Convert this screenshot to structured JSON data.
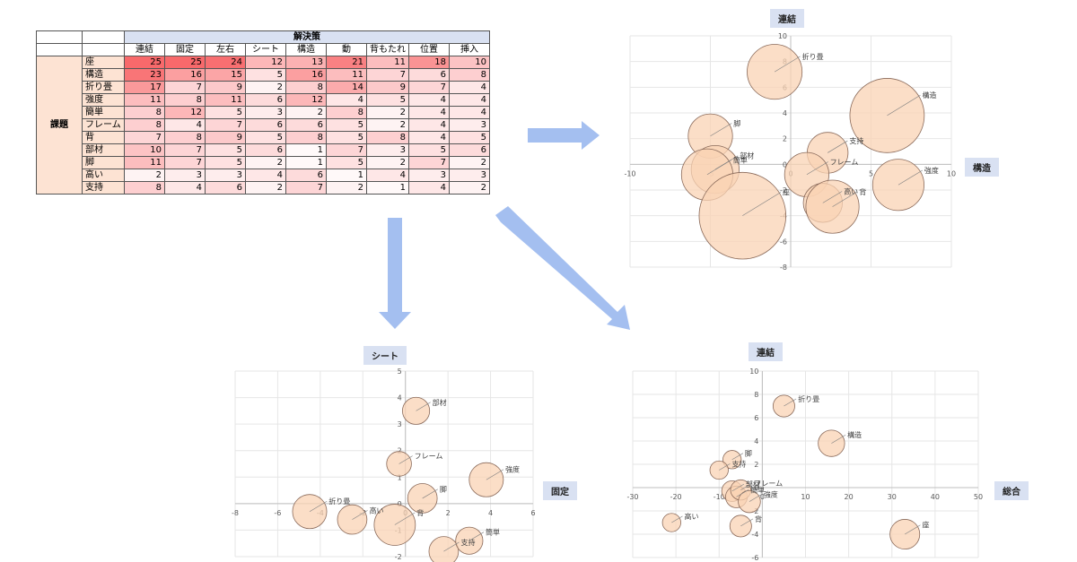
{
  "table": {
    "group_header": "解決策",
    "row_group_label": "課題",
    "columns": [
      "連結",
      "固定",
      "左右",
      "シート",
      "構造",
      "動",
      "背もたれ",
      "位置",
      "挿入"
    ],
    "rows": [
      {
        "label": "座",
        "values": [
          25,
          25,
          24,
          12,
          13,
          21,
          11,
          18,
          10
        ]
      },
      {
        "label": "構造",
        "values": [
          23,
          16,
          15,
          5,
          16,
          11,
          7,
          6,
          8
        ]
      },
      {
        "label": "折り畳",
        "values": [
          17,
          7,
          9,
          2,
          8,
          14,
          9,
          7,
          4
        ]
      },
      {
        "label": "強度",
        "values": [
          11,
          8,
          11,
          6,
          12,
          4,
          5,
          4,
          4
        ]
      },
      {
        "label": "簡単",
        "values": [
          8,
          12,
          5,
          3,
          2,
          8,
          2,
          4,
          4
        ]
      },
      {
        "label": "フレーム",
        "values": [
          8,
          4,
          7,
          6,
          6,
          5,
          2,
          4,
          3
        ]
      },
      {
        "label": "背",
        "values": [
          7,
          8,
          9,
          5,
          8,
          5,
          8,
          4,
          5
        ]
      },
      {
        "label": "部材",
        "values": [
          10,
          7,
          5,
          6,
          1,
          7,
          3,
          5,
          6
        ]
      },
      {
        "label": "脚",
        "values": [
          11,
          7,
          5,
          2,
          1,
          5,
          2,
          7,
          2
        ]
      },
      {
        "label": "高い",
        "values": [
          2,
          3,
          3,
          4,
          6,
          1,
          4,
          3,
          3
        ]
      },
      {
        "label": "支持",
        "values": [
          8,
          4,
          6,
          2,
          7,
          2,
          1,
          4,
          2
        ]
      }
    ],
    "heat_color": "#f8696b"
  },
  "colors": {
    "bubble_fill": "#f9d3b4",
    "bubble_stroke": "#8a6a5a",
    "arrow": "#a4bff0",
    "title_bg": "#d9e1f2",
    "grid": "#e6e6e6"
  },
  "chart_data": [
    {
      "type": "scatter",
      "title": "連結",
      "xlabel": "構造",
      "ylabel": "",
      "xlim": [
        -10,
        10
      ],
      "ylim": [
        -8,
        10
      ],
      "xticks": [
        -10,
        -5,
        0,
        5,
        10
      ],
      "yticks": [
        -8,
        -6,
        -4,
        -2,
        0,
        2,
        4,
        6,
        8,
        10
      ],
      "grid": true,
      "points": [
        {
          "name": "折り畳",
          "x": -1,
          "y": 7.2,
          "r": 2.5
        },
        {
          "name": "構造",
          "x": 6,
          "y": 3.8,
          "r": 3.6
        },
        {
          "name": "脚",
          "x": -5,
          "y": 2.2,
          "r": 1.9
        },
        {
          "name": "支持",
          "x": 2.3,
          "y": 0.9,
          "r": 1.7
        },
        {
          "name": "部材",
          "x": -4.7,
          "y": -0.4,
          "r": 2.1
        },
        {
          "name": "簡単",
          "x": -5.2,
          "y": -0.8,
          "r": 2.3
        },
        {
          "name": "フレーム",
          "x": 1,
          "y": -0.8,
          "r": 1.9
        },
        {
          "name": "強度",
          "x": 6.7,
          "y": -1.6,
          "r": 2.3
        },
        {
          "name": "座",
          "x": -3,
          "y": -4,
          "r": 4.3
        },
        {
          "name": "高い",
          "x": 2,
          "y": -3,
          "r": 1.6
        },
        {
          "name": "背",
          "x": 2.6,
          "y": -3.3,
          "r": 2.4
        }
      ]
    },
    {
      "type": "scatter",
      "title": "シート",
      "xlabel": "固定",
      "ylabel": "",
      "xlim": [
        -8,
        6
      ],
      "ylim": [
        -2,
        5
      ],
      "xticks": [
        -8,
        -6,
        -4,
        -2,
        0,
        2,
        4,
        6
      ],
      "yticks": [
        -2,
        -1,
        0,
        1,
        2,
        3,
        4,
        5
      ],
      "grid": true,
      "points": [
        {
          "name": "部材",
          "x": 0.5,
          "y": 3.5,
          "r": 0.7
        },
        {
          "name": "フレーム",
          "x": -0.3,
          "y": 1.5,
          "r": 0.6
        },
        {
          "name": "強度",
          "x": 3.8,
          "y": 0.9,
          "r": 1.0
        },
        {
          "name": "脚",
          "x": 0.8,
          "y": 0.2,
          "r": 0.8
        },
        {
          "name": "折り畳",
          "x": -4.5,
          "y": -0.3,
          "r": 1.0
        },
        {
          "name": "高い",
          "x": -2.5,
          "y": -0.6,
          "r": 0.8
        },
        {
          "name": "背",
          "x": -0.5,
          "y": -0.8,
          "r": 1.3
        },
        {
          "name": "支持",
          "x": 1.8,
          "y": -1.8,
          "r": 0.8
        },
        {
          "name": "簡単",
          "x": 3,
          "y": -1.4,
          "r": 0.7
        }
      ]
    },
    {
      "type": "scatter",
      "title": "連結",
      "xlabel": "総合",
      "ylabel": "",
      "xlim": [
        -30,
        50
      ],
      "ylim": [
        -6,
        10
      ],
      "xticks": [
        -30,
        -20,
        -10,
        0,
        10,
        20,
        30,
        40,
        50
      ],
      "yticks": [
        -6,
        -4,
        -2,
        0,
        2,
        4,
        6,
        8,
        10
      ],
      "grid": true,
      "points": [
        {
          "name": "折り畳",
          "x": 5,
          "y": 7,
          "r": 2.3
        },
        {
          "name": "構造",
          "x": 16,
          "y": 3.8,
          "r": 3.3
        },
        {
          "name": "脚",
          "x": -7,
          "y": 2.4,
          "r": 1.6
        },
        {
          "name": "支持",
          "x": -10,
          "y": 1.5,
          "r": 1.6
        },
        {
          "name": "部材",
          "x": -7,
          "y": -0.3,
          "r": 2.1
        },
        {
          "name": "簡単",
          "x": -6,
          "y": -0.8,
          "r": 2.3
        },
        {
          "name": "フレーム",
          "x": -5,
          "y": -0.2,
          "r": 2.0
        },
        {
          "name": "強度",
          "x": -3,
          "y": -1.2,
          "r": 2.4
        },
        {
          "name": "高い",
          "x": -21,
          "y": -3,
          "r": 1.6
        },
        {
          "name": "背",
          "x": -5,
          "y": -3.3,
          "r": 2.3
        },
        {
          "name": "座",
          "x": 33,
          "y": -4,
          "r": 4.0
        }
      ]
    }
  ]
}
